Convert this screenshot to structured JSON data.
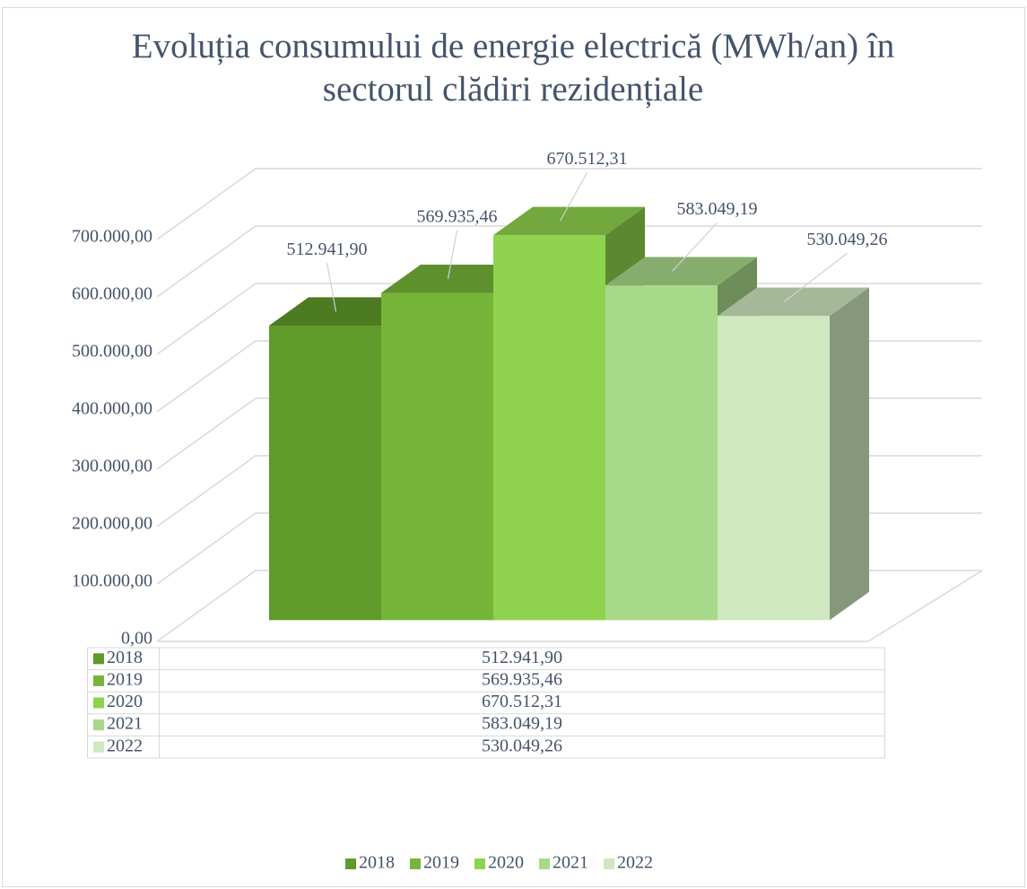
{
  "chart_data": {
    "type": "bar3d",
    "title": "Evoluția consumului de energie electrică (MWh/an) în sectorul clădiri rezidențiale",
    "series": [
      {
        "name": "2018",
        "color": "#5f9a2b",
        "values": [
          512941.9
        ],
        "value_labels": [
          "512.941,90"
        ]
      },
      {
        "name": "2019",
        "color": "#77b53a",
        "values": [
          569935.46
        ],
        "value_labels": [
          "569.935,46"
        ]
      },
      {
        "name": "2020",
        "color": "#8fd24e",
        "values": [
          670512.31
        ],
        "value_labels": [
          "670.512,31"
        ]
      },
      {
        "name": "2021",
        "color": "#a8d98a",
        "values": [
          583049.19
        ],
        "value_labels": [
          "583.049,19"
        ]
      },
      {
        "name": "2022",
        "color": "#cfe8bf",
        "values": [
          530049.26
        ],
        "value_labels": [
          "530.049,26"
        ]
      }
    ],
    "ylim": [
      0,
      700000
    ],
    "yticks": [
      {
        "value": 0,
        "label": "0,00"
      },
      {
        "value": 100000,
        "label": "100.000,00"
      },
      {
        "value": 200000,
        "label": "200.000,00"
      },
      {
        "value": 300000,
        "label": "300.000,00"
      },
      {
        "value": 400000,
        "label": "400.000,00"
      },
      {
        "value": 500000,
        "label": "500.000,00"
      },
      {
        "value": 600000,
        "label": "600.000,00"
      },
      {
        "value": 700000,
        "label": "700.000,00"
      }
    ],
    "grid": true,
    "legend": "bottom",
    "data_table": true
  }
}
